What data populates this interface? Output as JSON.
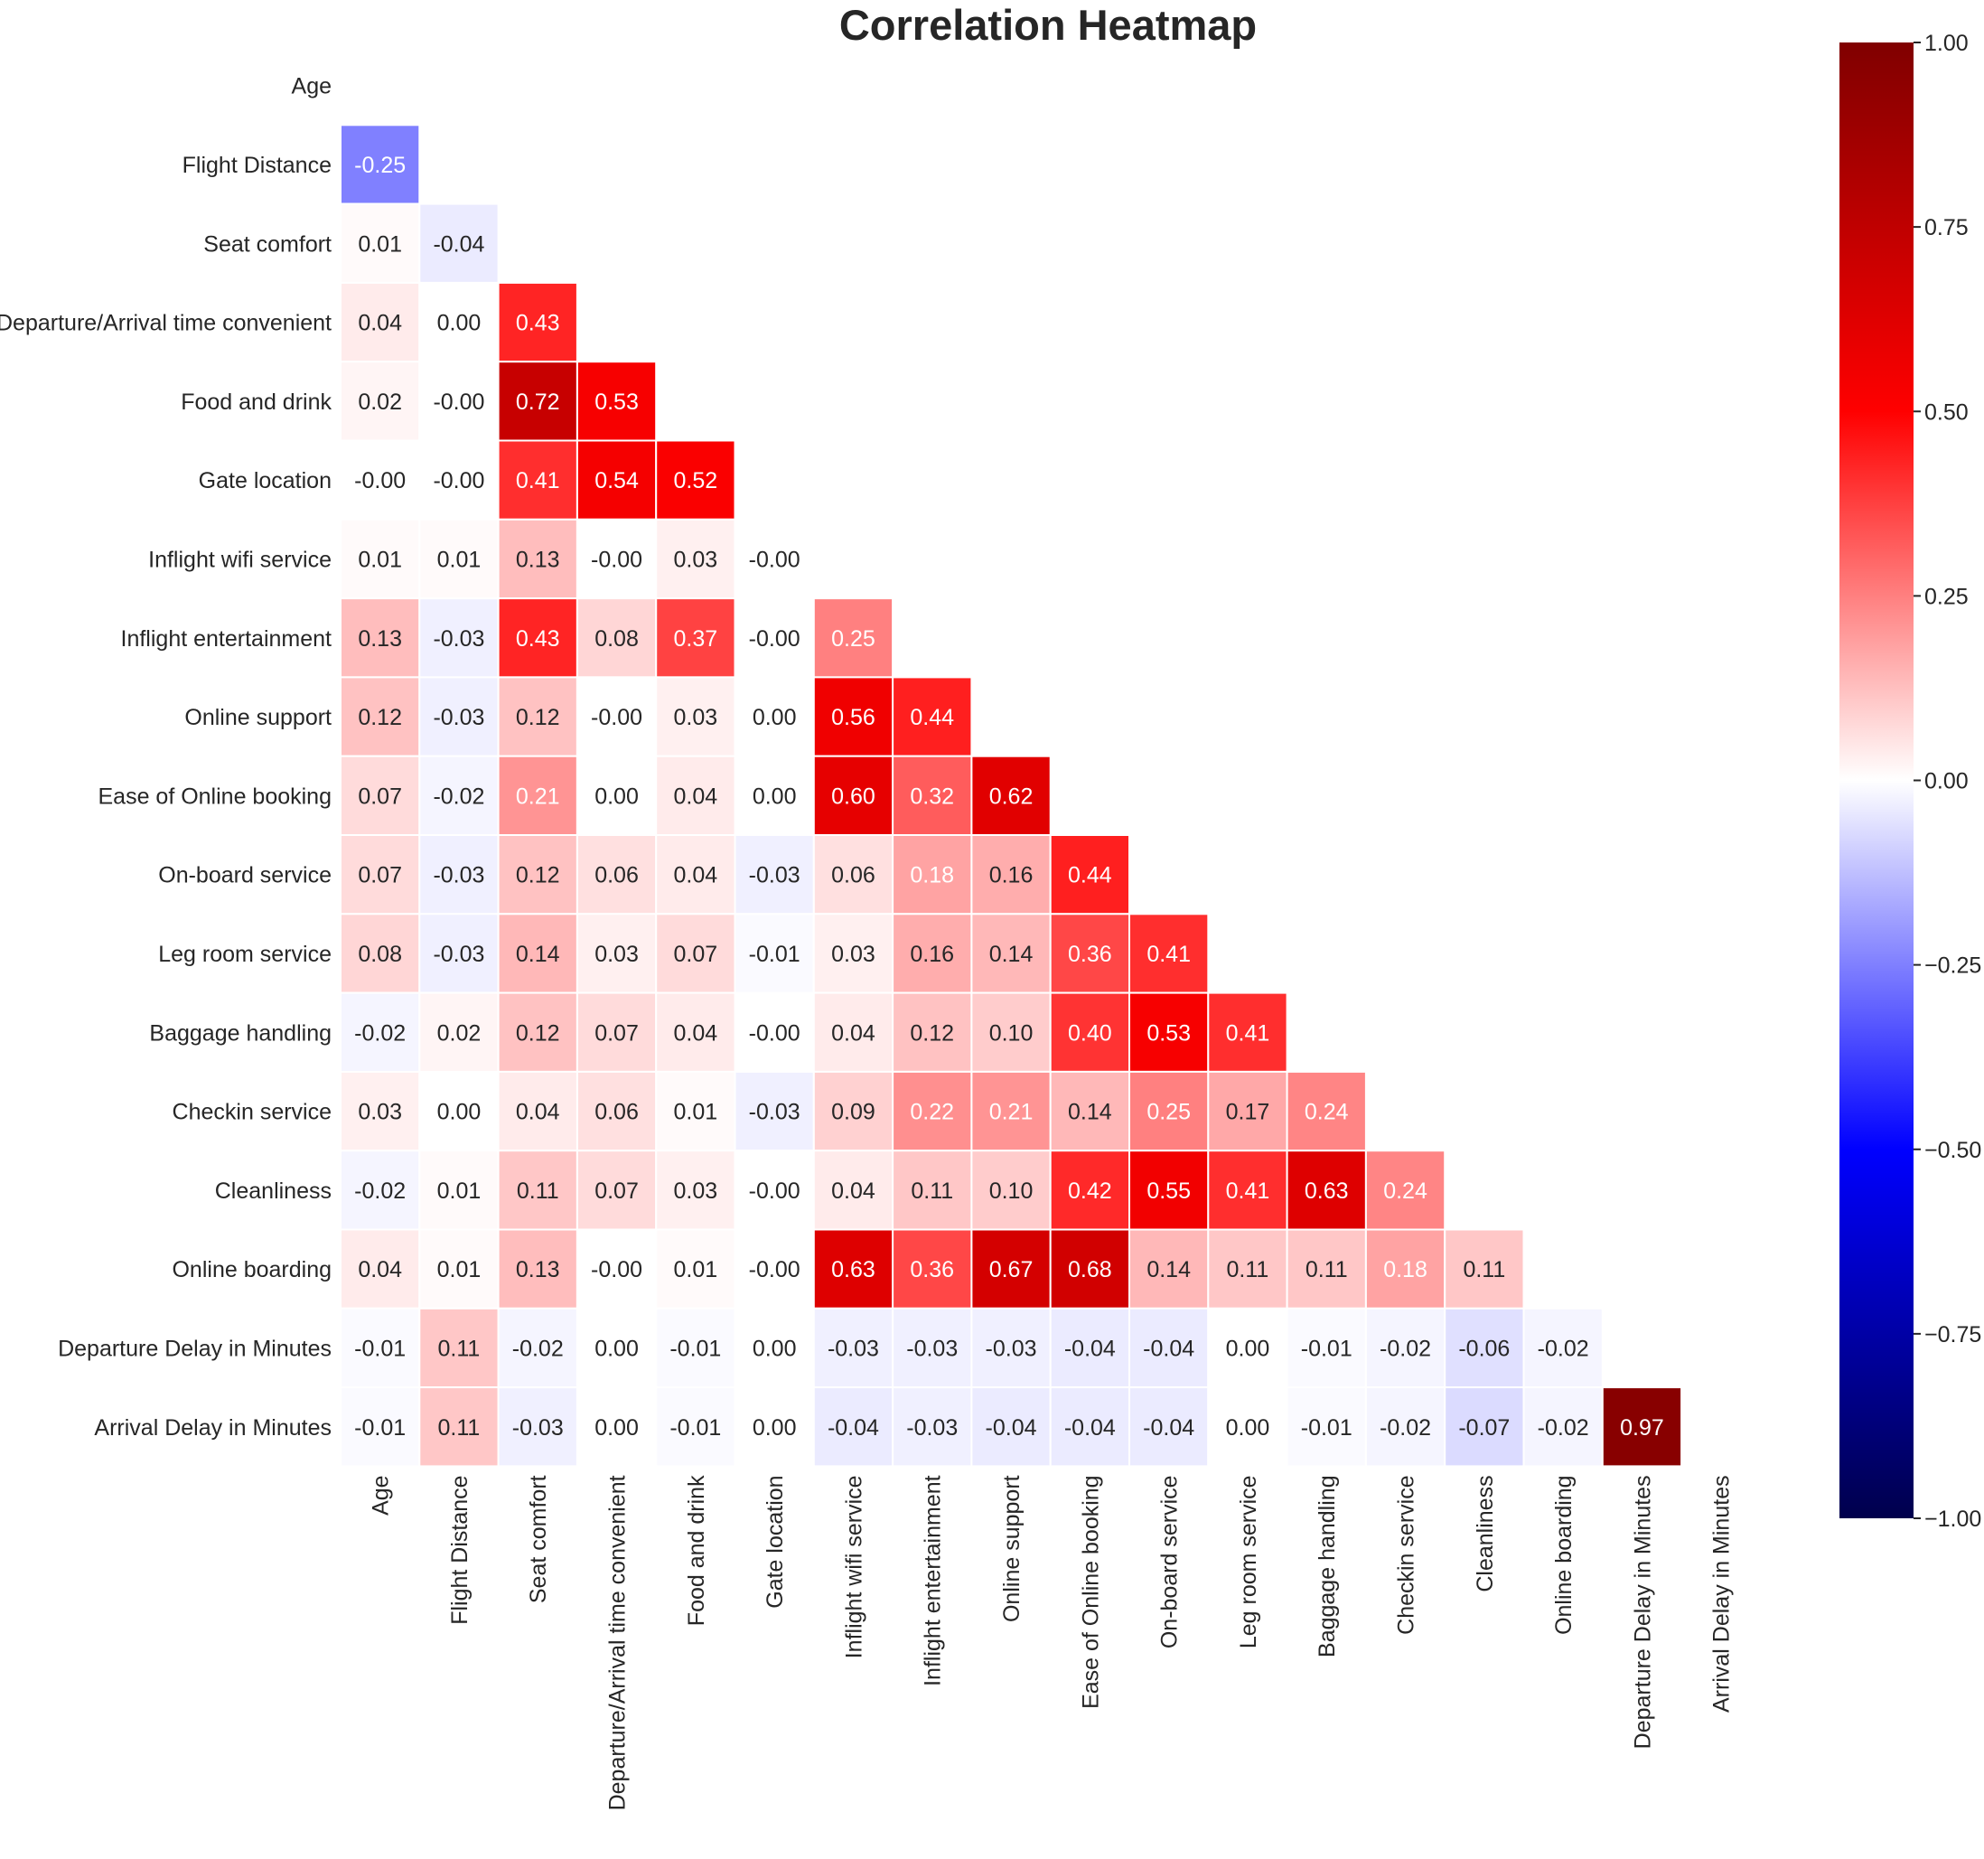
{
  "chart_data": {
    "type": "heatmap",
    "title": "Correlation Heatmap",
    "labels": [
      "Age",
      "Flight Distance",
      "Seat comfort",
      "Departure/Arrival time convenient",
      "Food and drink",
      "Gate location",
      "Inflight wifi service",
      "Inflight entertainment",
      "Online support",
      "Ease of Online booking",
      "On-board service",
      "Leg room service",
      "Baggage handling",
      "Checkin service",
      "Cleanliness",
      "Online boarding",
      "Departure Delay in Minutes",
      "Arrival Delay in Minutes"
    ],
    "value_labels": [
      [],
      [
        "-0.25"
      ],
      [
        "0.01",
        "-0.04"
      ],
      [
        "0.04",
        "0.00",
        "0.43"
      ],
      [
        "0.02",
        "-0.00",
        "0.72",
        "0.53"
      ],
      [
        "-0.00",
        "-0.00",
        "0.41",
        "0.54",
        "0.52"
      ],
      [
        "0.01",
        "0.01",
        "0.13",
        "-0.00",
        "0.03",
        "-0.00"
      ],
      [
        "0.13",
        "-0.03",
        "0.43",
        "0.08",
        "0.37",
        "-0.00",
        "0.25"
      ],
      [
        "0.12",
        "-0.03",
        "0.12",
        "-0.00",
        "0.03",
        "0.00",
        "0.56",
        "0.44"
      ],
      [
        "0.07",
        "-0.02",
        "0.21",
        "0.00",
        "0.04",
        "0.00",
        "0.60",
        "0.32",
        "0.62"
      ],
      [
        "0.07",
        "-0.03",
        "0.12",
        "0.06",
        "0.04",
        "-0.03",
        "0.06",
        "0.18",
        "0.16",
        "0.44"
      ],
      [
        "0.08",
        "-0.03",
        "0.14",
        "0.03",
        "0.07",
        "-0.01",
        "0.03",
        "0.16",
        "0.14",
        "0.36",
        "0.41"
      ],
      [
        "-0.02",
        "0.02",
        "0.12",
        "0.07",
        "0.04",
        "-0.00",
        "0.04",
        "0.12",
        "0.10",
        "0.40",
        "0.53",
        "0.41"
      ],
      [
        "0.03",
        "0.00",
        "0.04",
        "0.06",
        "0.01",
        "-0.03",
        "0.09",
        "0.22",
        "0.21",
        "0.14",
        "0.25",
        "0.17",
        "0.24"
      ],
      [
        "-0.02",
        "0.01",
        "0.11",
        "0.07",
        "0.03",
        "-0.00",
        "0.04",
        "0.11",
        "0.10",
        "0.42",
        "0.55",
        "0.41",
        "0.63",
        "0.24"
      ],
      [
        "0.04",
        "0.01",
        "0.13",
        "-0.00",
        "0.01",
        "-0.00",
        "0.63",
        "0.36",
        "0.67",
        "0.68",
        "0.14",
        "0.11",
        "0.11",
        "0.18",
        "0.11"
      ],
      [
        "-0.01",
        "0.11",
        "-0.02",
        "0.00",
        "-0.01",
        "0.00",
        "-0.03",
        "-0.03",
        "-0.03",
        "-0.04",
        "-0.04",
        "0.00",
        "-0.01",
        "-0.02",
        "-0.06",
        "-0.02"
      ],
      [
        "-0.01",
        "0.11",
        "-0.03",
        "0.00",
        "-0.01",
        "0.00",
        "-0.04",
        "-0.03",
        "-0.04",
        "-0.04",
        "-0.04",
        "0.00",
        "-0.01",
        "-0.02",
        "-0.07",
        "-0.02",
        "0.97"
      ]
    ],
    "mask": "upper triangle and diagonal hidden",
    "colormap": "seismic",
    "color_stops": [
      "#00004c",
      "#0000ff",
      "#ffffff",
      "#ff0000",
      "#800000"
    ],
    "vmin": -1.0,
    "vmax": 1.0,
    "colorbar_ticks": [
      "1.00",
      "0.75",
      "0.50",
      "0.25",
      "0.00",
      "−0.25",
      "−0.50",
      "−0.75",
      "−1.00"
    ],
    "colorbar_tick_values": [
      1.0,
      0.75,
      0.5,
      0.25,
      0.0,
      -0.25,
      -0.5,
      -0.75,
      -1.0
    ],
    "cell_border_color": "#ffffff",
    "text_dark": "#262626",
    "text_light": "#ffffff"
  }
}
